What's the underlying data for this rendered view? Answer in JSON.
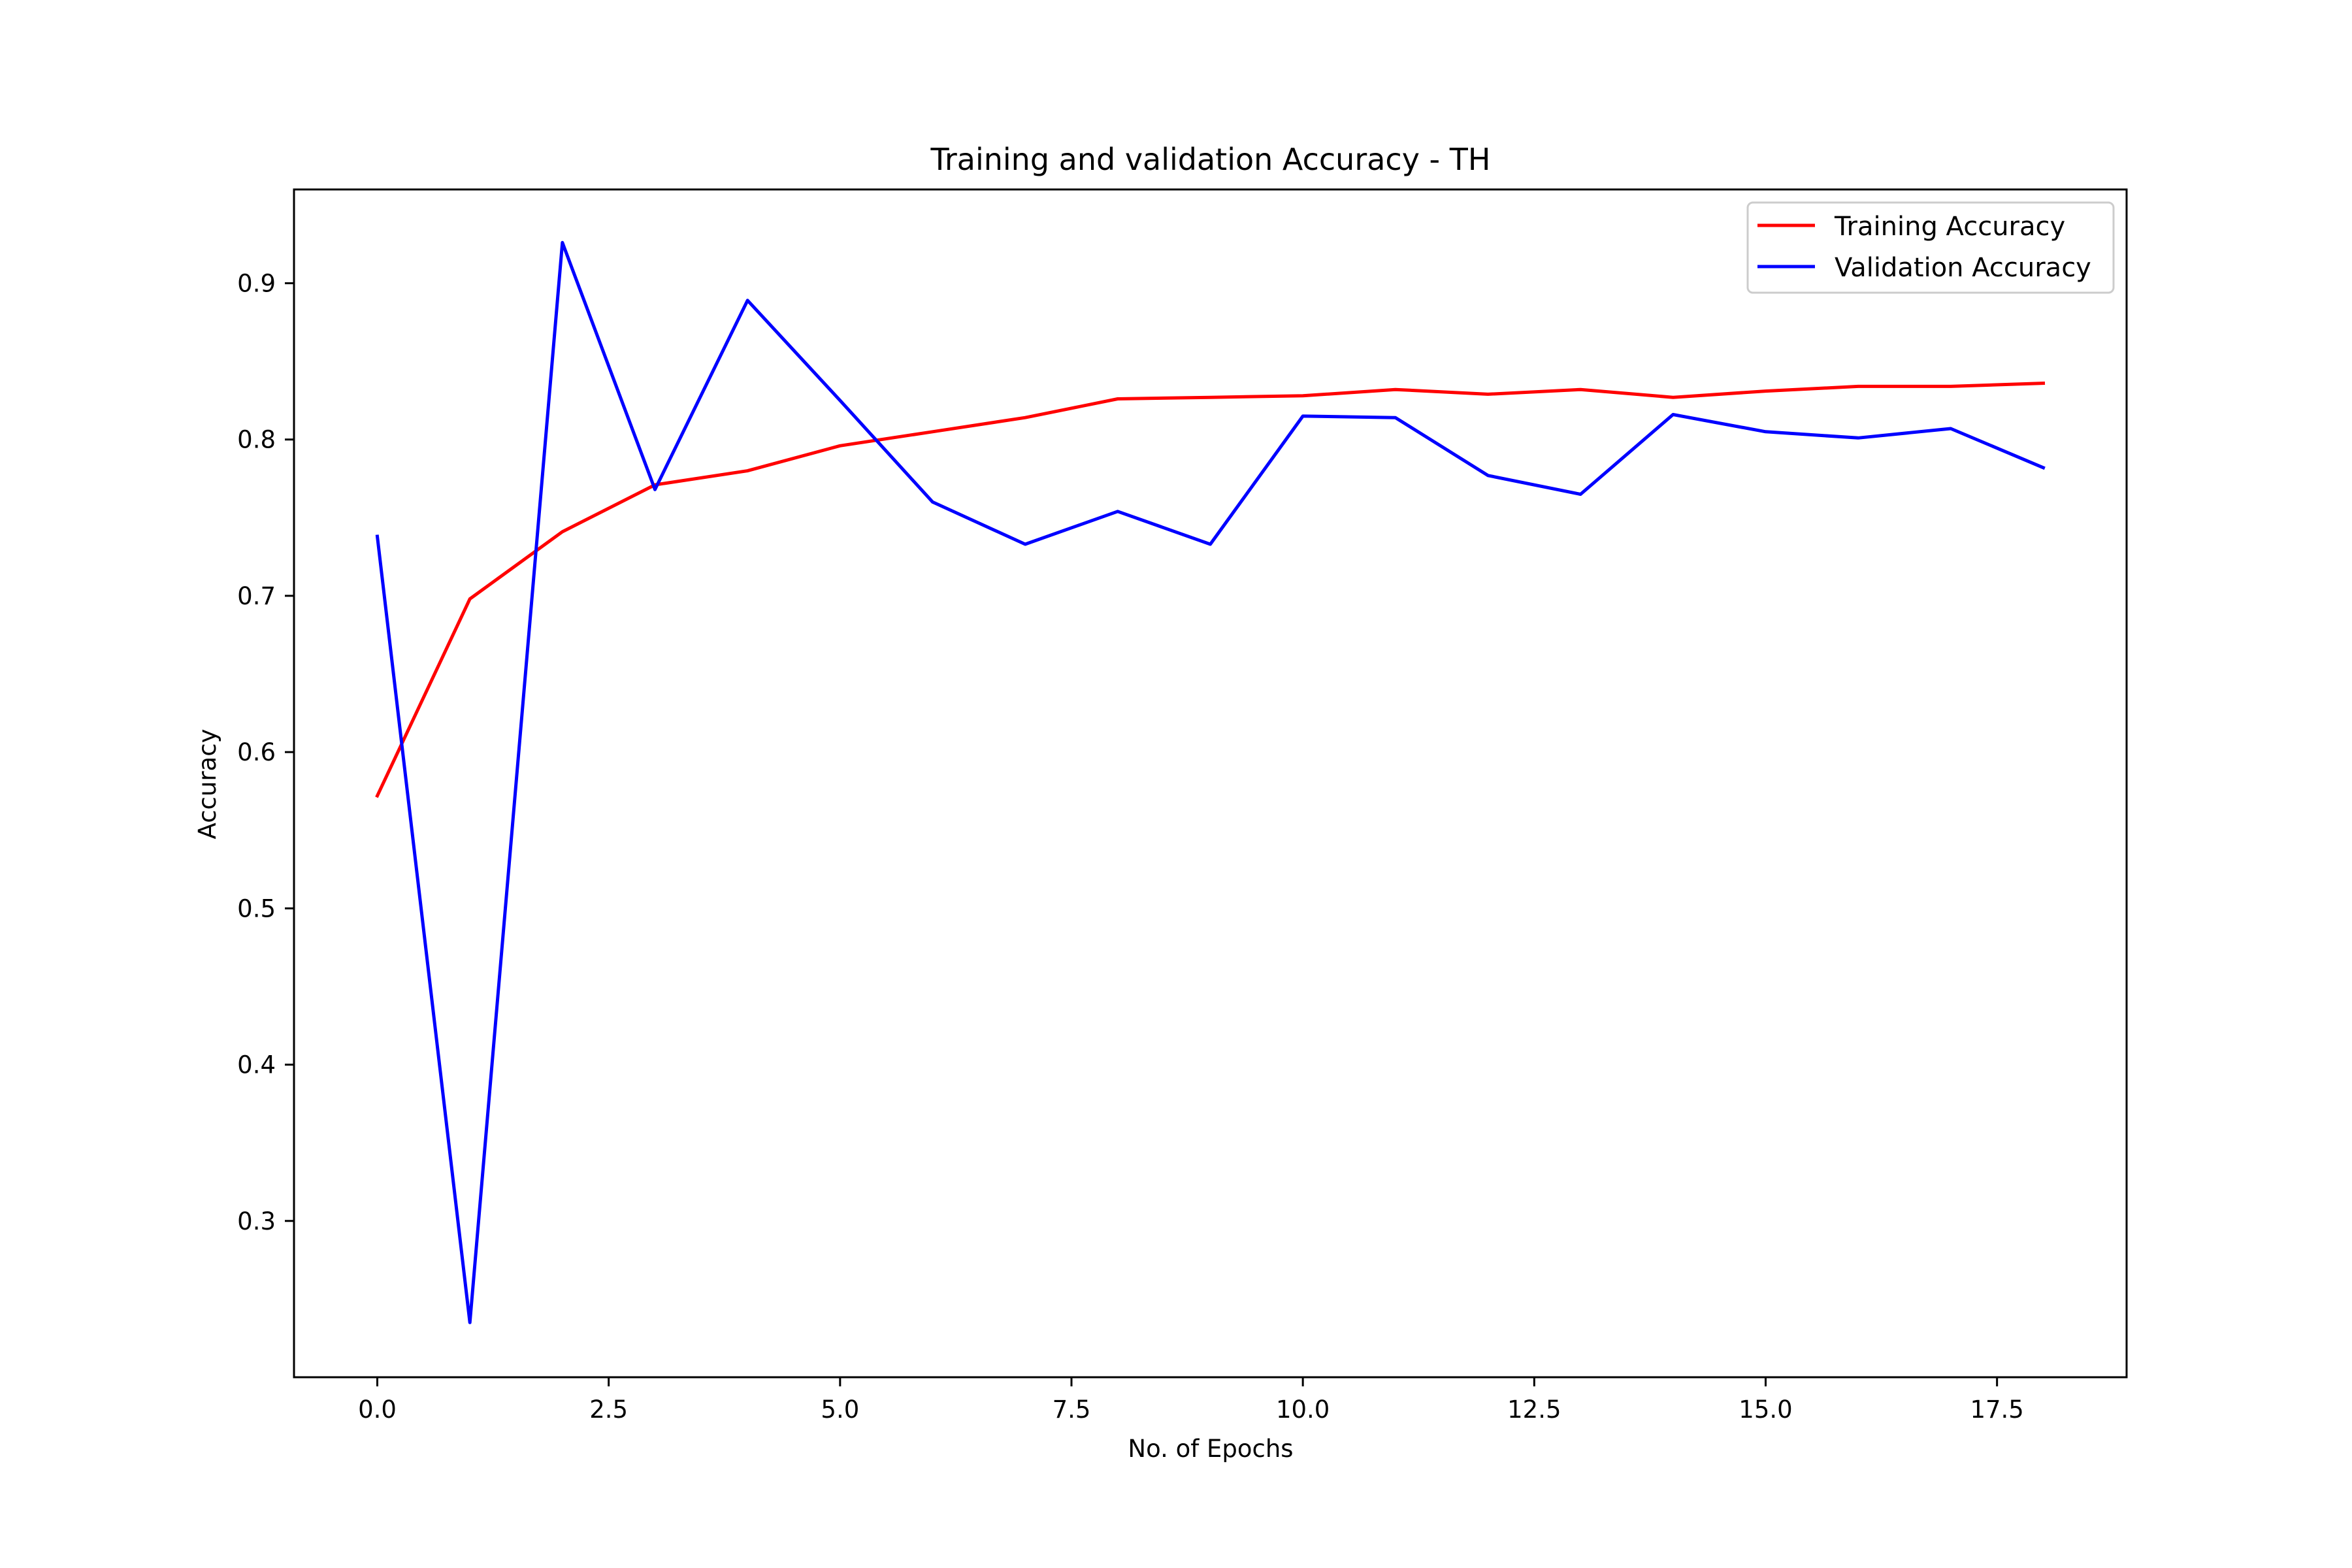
{
  "chart_data": {
    "type": "line",
    "title": "Training and validation Accuracy - TH",
    "xlabel": "No. of Epochs",
    "ylabel": "Accuracy",
    "xlim": [
      -0.9,
      18.9
    ],
    "ylim": [
      0.2,
      0.96
    ],
    "xticks": [
      0.0,
      2.5,
      5.0,
      7.5,
      10.0,
      12.5,
      15.0,
      17.5
    ],
    "xtick_labels": [
      "0.0",
      "2.5",
      "5.0",
      "7.5",
      "10.0",
      "12.5",
      "15.0",
      "17.5"
    ],
    "yticks": [
      0.3,
      0.4,
      0.5,
      0.6,
      0.7,
      0.8,
      0.9
    ],
    "ytick_labels": [
      "0.3",
      "0.4",
      "0.5",
      "0.6",
      "0.7",
      "0.8",
      "0.9"
    ],
    "grid": false,
    "legend_position": "top-right",
    "x": [
      0,
      1,
      2,
      3,
      4,
      5,
      6,
      7,
      8,
      9,
      10,
      11,
      12,
      13,
      14,
      15,
      16,
      17,
      18
    ],
    "series": [
      {
        "name": "Training Accuracy",
        "color": "#ff0000",
        "values": [
          0.572,
          0.698,
          0.741,
          0.771,
          0.78,
          0.796,
          0.805,
          0.814,
          0.826,
          0.827,
          0.828,
          0.832,
          0.829,
          0.832,
          0.827,
          0.831,
          0.834,
          0.834,
          0.836
        ]
      },
      {
        "name": "Validation Accuracy",
        "color": "#0000ff",
        "values": [
          0.738,
          0.235,
          0.926,
          0.768,
          0.889,
          0.825,
          0.76,
          0.733,
          0.754,
          0.733,
          0.815,
          0.814,
          0.777,
          0.765,
          0.816,
          0.805,
          0.801,
          0.807,
          0.782
        ]
      }
    ]
  }
}
